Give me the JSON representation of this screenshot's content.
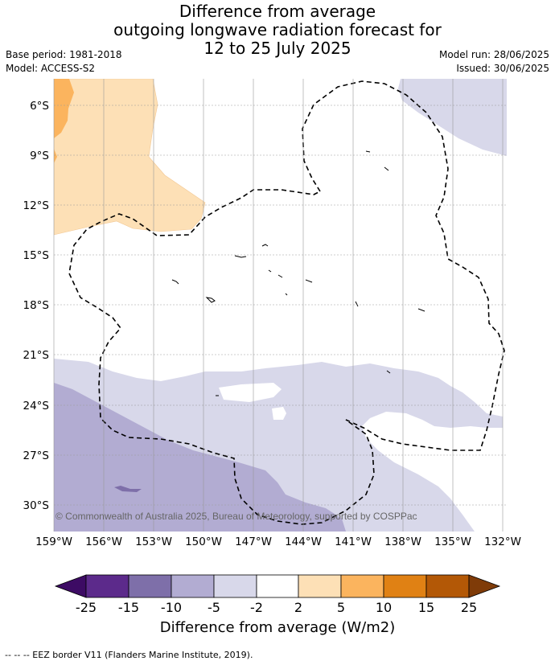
{
  "title": {
    "line1": "Difference from average",
    "line2": "outgoing longwave radiation forecast for",
    "line3": "12 to 25 July 2025"
  },
  "meta": {
    "base_period": "Base period: 1981-2018",
    "model": "Model: ACCESS-S2",
    "model_run": "Model run: 28/06/2025",
    "issued": "Issued: 30/06/2025"
  },
  "map": {
    "lat_labels": [
      "6°S",
      "9°S",
      "12°S",
      "15°S",
      "18°S",
      "21°S",
      "24°S",
      "27°S",
      "30°S"
    ],
    "lon_labels": [
      "159°W",
      "156°W",
      "153°W",
      "150°W",
      "147°W",
      "144°W",
      "141°W",
      "138°W",
      "135°W",
      "132°W"
    ],
    "copyright": "© Commonwealth of Australia 2025, Bureau of Meteorology, supported by COSPPac",
    "colors": {
      "minus_15_to_minus_10": "#7e6fa9",
      "minus_10_to_minus_5": "#b2acd2",
      "minus_5_to_minus_2": "#d8d8ea",
      "plus_2_to_plus_5": "#fde0b6",
      "plus_5_to_plus_10": "#fbb45e"
    }
  },
  "colorbar": {
    "title": "Difference from average (W/m2)",
    "ticks": [
      "-25",
      "-15",
      "-10",
      "-5",
      "-2",
      "2",
      "5",
      "10",
      "15",
      "25"
    ],
    "colors": [
      "#3d0b64",
      "#5c2a8b",
      "#7e6fa9",
      "#b2acd2",
      "#d8d8ea",
      "#ffffff",
      "#fde0b6",
      "#fbb45e",
      "#e08114",
      "#b35806",
      "#7f3b08"
    ]
  },
  "legend_note": "--  --  -- EEZ border V11 (Flanders Marine Institute, 2019)."
}
